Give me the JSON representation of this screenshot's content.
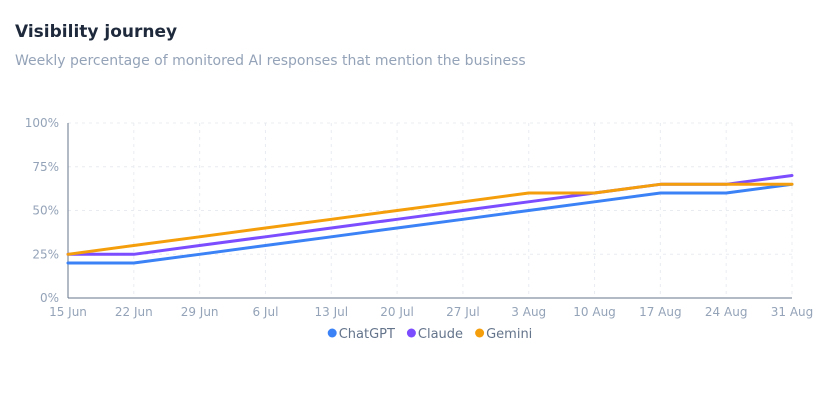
{
  "header": {
    "title": "Visibility journey",
    "subtitle": "Weekly percentage of monitored AI responses that mention the business"
  },
  "chart_data": {
    "type": "line",
    "title": "Visibility journey",
    "subtitle": "Weekly percentage of monitored AI responses that mention the business",
    "xlabel": "",
    "ylabel": "",
    "x": [
      "15 Jun",
      "22 Jun",
      "29 Jun",
      "6 Jul",
      "13 Jul",
      "20 Jul",
      "27 Jul",
      "3 Aug",
      "10 Aug",
      "17 Aug",
      "24 Aug",
      "31 Aug"
    ],
    "ylim": [
      0,
      100
    ],
    "yticks": [
      "0%",
      "25%",
      "50%",
      "75%",
      "100%"
    ],
    "ytick_values": [
      0,
      25,
      50,
      75,
      100
    ],
    "grid": true,
    "legend_position": "bottom-center",
    "series": [
      {
        "name": "ChatGPT",
        "color": "#3b82f6",
        "values": [
          20,
          20,
          25,
          30,
          35,
          40,
          45,
          50,
          55,
          60,
          60,
          65
        ]
      },
      {
        "name": "Claude",
        "color": "#7c4dff",
        "values": [
          25,
          25,
          30,
          35,
          40,
          45,
          50,
          55,
          60,
          65,
          65,
          70
        ]
      },
      {
        "name": "Gemini",
        "color": "#f59e0b",
        "values": [
          25,
          30,
          35,
          40,
          45,
          50,
          55,
          60,
          60,
          65,
          65,
          65
        ]
      }
    ]
  }
}
